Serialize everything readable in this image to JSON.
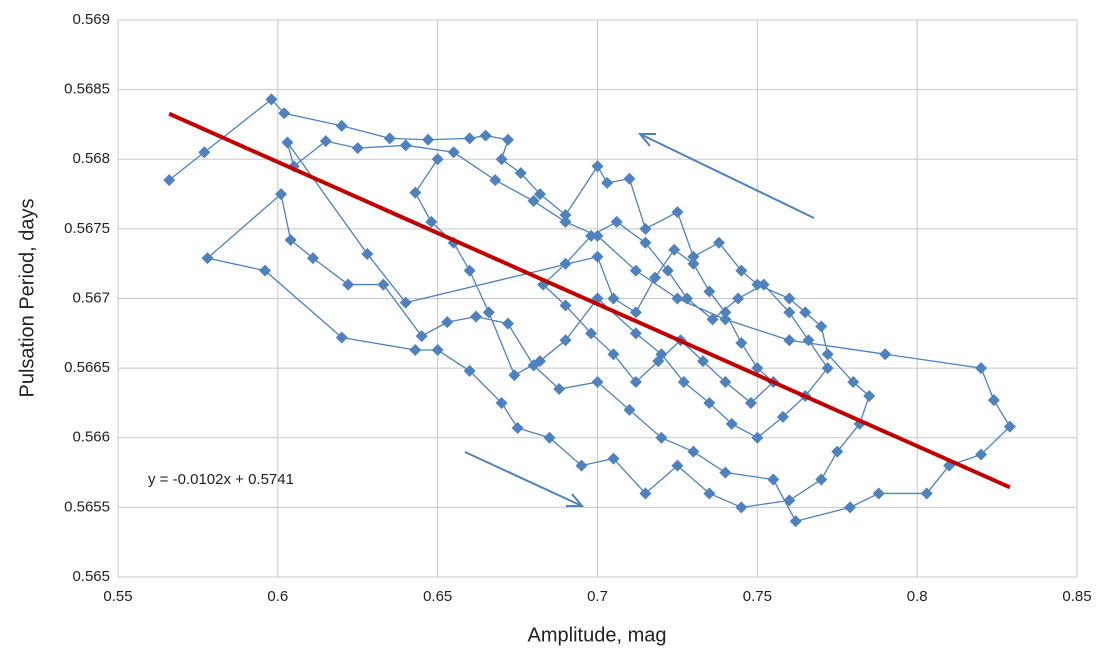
{
  "chart_data": {
    "type": "scatter",
    "x_label": "Amplitude, mag",
    "y_label": "Pulsation Period, days",
    "xlim": [
      0.55,
      0.85
    ],
    "xticks": [
      0.55,
      0.6,
      0.65,
      0.7,
      0.75,
      0.8,
      0.85
    ],
    "ylim": [
      0.565,
      0.569
    ],
    "yticks": [
      0.565,
      0.5655,
      0.566,
      0.5665,
      0.567,
      0.5675,
      0.568,
      0.5685,
      0.569
    ],
    "grid": true,
    "series": [
      {
        "color": "#4f81bd",
        "x": [
          0.566,
          0.577,
          0.598,
          0.602,
          0.62,
          0.635,
          0.647,
          0.66,
          0.665,
          0.672,
          0.67,
          0.676,
          0.682,
          0.69,
          0.7,
          0.703,
          0.71,
          0.715,
          0.725,
          0.73,
          0.738,
          0.745,
          0.75,
          0.76,
          0.765,
          0.77,
          0.772,
          0.78,
          0.785,
          0.782,
          0.775,
          0.77,
          0.76,
          0.745,
          0.735,
          0.725,
          0.715,
          0.705,
          0.695,
          0.685,
          0.675,
          0.67,
          0.66,
          0.65,
          0.643,
          0.62,
          0.596,
          0.578,
          0.601,
          0.604,
          0.611,
          0.622,
          0.633,
          0.645,
          0.653,
          0.662,
          0.672,
          0.68,
          0.688,
          0.7,
          0.71,
          0.72,
          0.73,
          0.74,
          0.755,
          0.762,
          0.779,
          0.788,
          0.803,
          0.81,
          0.82,
          0.829,
          0.824,
          0.82,
          0.79,
          0.76,
          0.74,
          0.725,
          0.712,
          0.7,
          0.69,
          0.68,
          0.668,
          0.655,
          0.64,
          0.625,
          0.615,
          0.605,
          0.603,
          0.628,
          0.64,
          0.7,
          0.705,
          0.712,
          0.718,
          0.724,
          0.73,
          0.735,
          0.74,
          0.745,
          0.75,
          0.755,
          0.748,
          0.74,
          0.733,
          0.726,
          0.719,
          0.712,
          0.705,
          0.698,
          0.69,
          0.683,
          0.69,
          0.698,
          0.706,
          0.715,
          0.722,
          0.728,
          0.736,
          0.744,
          0.752,
          0.76,
          0.766,
          0.772,
          0.765,
          0.758,
          0.75,
          0.742,
          0.735,
          0.727,
          0.72,
          0.712,
          0.7,
          0.69,
          0.682,
          0.674,
          0.666,
          0.66,
          0.655,
          0.648,
          0.643,
          0.65
        ],
        "values": [
          0.56785,
          0.56805,
          0.56843,
          0.56833,
          0.56824,
          0.56815,
          0.56814,
          0.56815,
          0.56817,
          0.56814,
          0.568,
          0.5679,
          0.56775,
          0.5676,
          0.56795,
          0.56783,
          0.56786,
          0.5675,
          0.56762,
          0.5673,
          0.5674,
          0.5672,
          0.5671,
          0.567,
          0.5669,
          0.5668,
          0.5666,
          0.5664,
          0.5663,
          0.5661,
          0.5659,
          0.5657,
          0.56555,
          0.5655,
          0.5656,
          0.5658,
          0.5656,
          0.56585,
          0.5658,
          0.566,
          0.56607,
          0.56625,
          0.56648,
          0.56663,
          0.56663,
          0.56672,
          0.5672,
          0.56729,
          0.56775,
          0.56742,
          0.56729,
          0.5671,
          0.5671,
          0.56673,
          0.56683,
          0.56687,
          0.56682,
          0.56652,
          0.56635,
          0.5664,
          0.5662,
          0.566,
          0.5659,
          0.56575,
          0.5657,
          0.5654,
          0.5655,
          0.5656,
          0.5656,
          0.5658,
          0.56588,
          0.56608,
          0.56627,
          0.5665,
          0.5666,
          0.5667,
          0.56685,
          0.567,
          0.5672,
          0.56745,
          0.56755,
          0.5677,
          0.56785,
          0.56805,
          0.5681,
          0.56808,
          0.56813,
          0.56795,
          0.56812,
          0.56732,
          0.56697,
          0.5673,
          0.567,
          0.5669,
          0.56715,
          0.56735,
          0.56725,
          0.56705,
          0.5669,
          0.56668,
          0.5665,
          0.5664,
          0.56625,
          0.5664,
          0.56655,
          0.5667,
          0.56655,
          0.5664,
          0.5666,
          0.56675,
          0.56695,
          0.5671,
          0.56725,
          0.56745,
          0.56755,
          0.5674,
          0.5672,
          0.567,
          0.56685,
          0.567,
          0.5671,
          0.5669,
          0.5667,
          0.5665,
          0.5663,
          0.56615,
          0.566,
          0.5661,
          0.56625,
          0.5664,
          0.5666,
          0.56675,
          0.567,
          0.5667,
          0.56655,
          0.56645,
          0.5669,
          0.5672,
          0.5674,
          0.56755,
          0.56776,
          0.568
        ]
      }
    ],
    "trendline": {
      "slope": -0.0102,
      "intercept": 0.5741,
      "x_range": [
        0.566,
        0.829
      ],
      "color": "#c00000",
      "label": "y = -0.0102x + 0.5741"
    }
  }
}
